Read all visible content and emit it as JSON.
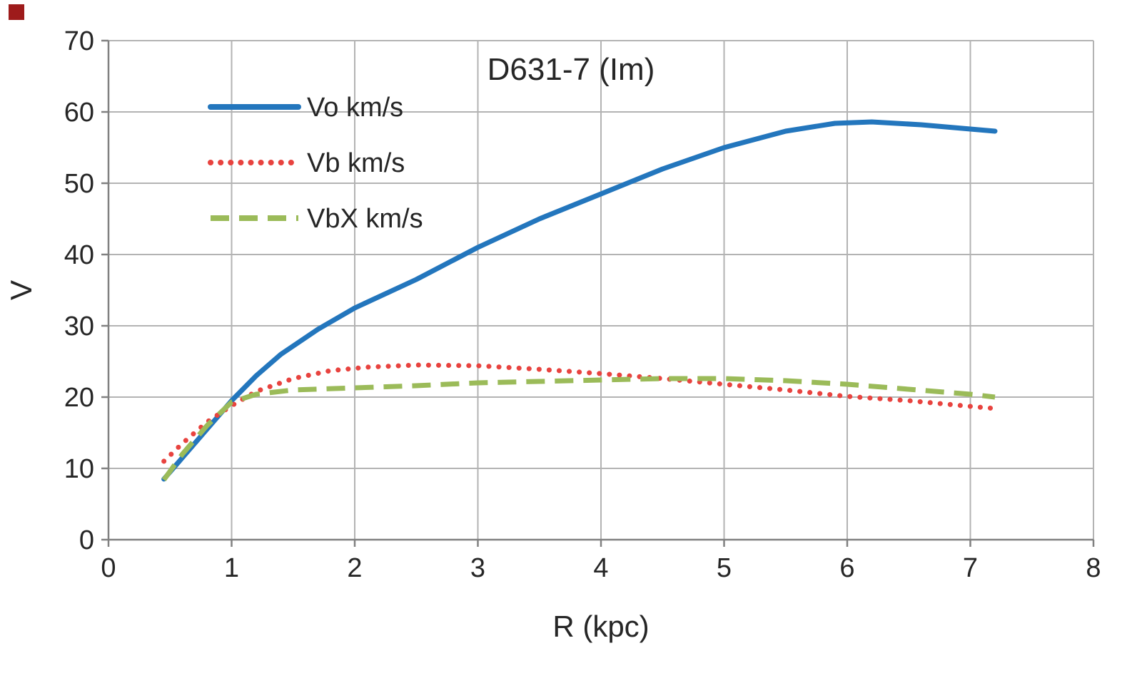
{
  "colors": {
    "background": "#ffffff",
    "grid": "#b3b3b3",
    "axis": "#808080",
    "text": "#262626"
  },
  "decor": {
    "corner_mark_color": "#9e1b1b"
  },
  "chart_data": {
    "type": "line",
    "title": "D631-7 (Im)",
    "xlabel": "R (kpc)",
    "ylabel": "V",
    "xlim": [
      0,
      8
    ],
    "ylim": [
      0,
      70
    ],
    "xticks": [
      0,
      1,
      2,
      3,
      4,
      5,
      6,
      7,
      8
    ],
    "yticks": [
      0,
      10,
      20,
      30,
      40,
      50,
      60,
      70
    ],
    "grid": true,
    "legend_position": "inside-top-left",
    "series": [
      {
        "name": "Vo km/s",
        "color": "#2376bd",
        "style": "solid",
        "x": [
          0.45,
          0.6,
          0.8,
          1.0,
          1.2,
          1.4,
          1.7,
          2.0,
          2.5,
          3.0,
          3.5,
          4.0,
          4.5,
          5.0,
          5.5,
          5.9,
          6.2,
          6.6,
          7.0,
          7.2
        ],
        "y": [
          8.5,
          11.5,
          15.5,
          19.5,
          23.0,
          26.0,
          29.5,
          32.5,
          36.5,
          41.0,
          45.0,
          48.5,
          52.0,
          55.0,
          57.3,
          58.4,
          58.6,
          58.2,
          57.6,
          57.3
        ]
      },
      {
        "name": "Vb km/s",
        "color": "#e8433f",
        "style": "dotted",
        "x": [
          0.45,
          0.6,
          0.8,
          1.0,
          1.2,
          1.5,
          1.8,
          2.1,
          2.5,
          3.0,
          3.5,
          4.0,
          4.5,
          5.0,
          5.5,
          6.0,
          6.5,
          7.0,
          7.2
        ],
        "y": [
          11.0,
          13.5,
          16.5,
          18.8,
          20.8,
          22.6,
          23.7,
          24.2,
          24.5,
          24.4,
          23.9,
          23.3,
          22.6,
          21.8,
          21.0,
          20.1,
          19.5,
          18.7,
          18.4
        ]
      },
      {
        "name": "VbX km/s",
        "color": "#9bbb59",
        "style": "dashed",
        "x": [
          0.45,
          0.6,
          0.8,
          1.0,
          1.2,
          1.5,
          2.0,
          2.5,
          3.0,
          3.5,
          4.0,
          4.5,
          5.0,
          5.5,
          6.0,
          6.5,
          7.0,
          7.2
        ],
        "y": [
          8.4,
          12.0,
          16.0,
          19.3,
          20.4,
          21.0,
          21.3,
          21.6,
          22.0,
          22.2,
          22.4,
          22.6,
          22.6,
          22.3,
          21.8,
          21.1,
          20.4,
          20.0
        ]
      }
    ]
  }
}
